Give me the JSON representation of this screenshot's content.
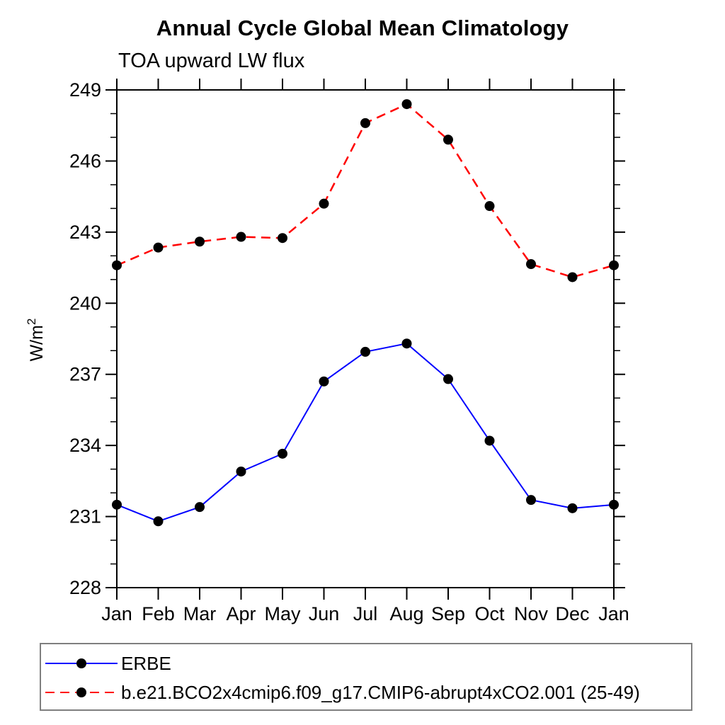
{
  "chart_data": {
    "type": "line",
    "title": "Annual Cycle Global Mean Climatology",
    "subtitle": "TOA upward LW flux",
    "ylabel": {
      "base": "W/m",
      "sup": "2"
    },
    "categories": [
      "Jan",
      "Feb",
      "Mar",
      "Apr",
      "May",
      "Jun",
      "Jul",
      "Aug",
      "Sep",
      "Oct",
      "Nov",
      "Dec",
      "Jan"
    ],
    "series": [
      {
        "name": "ERBE",
        "color": "#0000ff",
        "line_style": "solid",
        "marker": "filled-circle",
        "marker_color": "#000000",
        "values": [
          231.5,
          230.8,
          231.4,
          232.9,
          233.65,
          236.7,
          237.95,
          238.3,
          236.8,
          234.2,
          231.7,
          231.35,
          231.5
        ]
      },
      {
        "name": "b.e21.BCO2x4cmip6.f09_g17.CMIP6-abrupt4xCO2.001 (25-49)",
        "color": "#ff0000",
        "line_style": "dashed",
        "marker": "filled-circle",
        "marker_color": "#000000",
        "values": [
          241.6,
          242.35,
          242.6,
          242.8,
          242.75,
          244.2,
          247.6,
          248.4,
          246.9,
          244.1,
          241.65,
          241.1,
          241.6
        ]
      }
    ],
    "ylim": [
      228,
      249
    ],
    "y_major_step": 3,
    "y_minor_step": 1,
    "y_tick_labels": [
      "228",
      "231",
      "234",
      "237",
      "240",
      "243",
      "246",
      "249"
    ],
    "grid": false,
    "legend_position": "bottom",
    "axis_color": "#000000"
  }
}
